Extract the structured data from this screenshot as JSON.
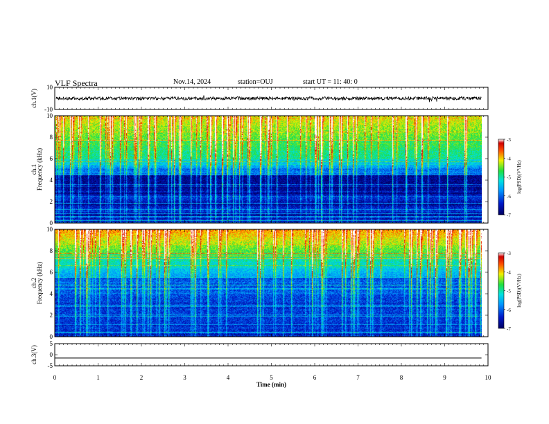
{
  "header": {
    "title": "VLF Spectra",
    "date": "Nov.14, 2024",
    "station": "station=OUJ",
    "start": "start  UT =  11: 40: 0"
  },
  "chart_data": [
    {
      "type": "line",
      "panel": "ch.1 waveform",
      "ylabel": "ch.1(V)",
      "ylim": [
        -10,
        10
      ],
      "y_tick_labels": [
        "10",
        "-10"
      ],
      "xlim": [
        0,
        10
      ],
      "approx_baseline": 0,
      "approx_noise_amplitude": 1.5,
      "data_end": 9.85
    },
    {
      "type": "heatmap",
      "panel": "ch.1 spectrogram",
      "ylabel": "ch.1 Frequency (kHz)",
      "ylim": [
        0,
        10
      ],
      "y_tick_labels": [
        "0",
        "2",
        "4",
        "6",
        "8",
        "10"
      ],
      "xlim": [
        0,
        10
      ],
      "data_end": 9.85,
      "colorbar": {
        "label": "log(PSD)(V²/Hz)",
        "range": [
          -7,
          -3
        ],
        "tick_labels": [
          "-3",
          "-4",
          "-5",
          "-6",
          "-7"
        ]
      }
    },
    {
      "type": "heatmap",
      "panel": "ch.2 spectrogram",
      "ylabel": "ch.2 Frequency (kHz)",
      "ylim": [
        0,
        10
      ],
      "y_tick_labels": [
        "0",
        "2",
        "4",
        "6",
        "8",
        "10"
      ],
      "xlim": [
        0,
        10
      ],
      "data_end": 9.85,
      "colorbar": {
        "label": "log(PSD)(V²/Hz)",
        "range": [
          -7,
          -3
        ],
        "tick_labels": [
          "-3",
          "-4",
          "-5",
          "-6",
          "-7"
        ]
      }
    },
    {
      "type": "line",
      "panel": "ch.3 waveform",
      "ylabel": "ch.3(V)",
      "ylim": [
        -5,
        5
      ],
      "y_tick_labels": [
        "5",
        "0",
        "-5"
      ],
      "xlim": [
        0,
        10
      ],
      "approx_level": -1.5,
      "data_end": 9.85
    }
  ],
  "x_axis": {
    "label": "Time  (min)",
    "tick_labels": [
      "0",
      "1",
      "2",
      "3",
      "4",
      "5",
      "6",
      "7",
      "8",
      "9",
      "10"
    ]
  }
}
